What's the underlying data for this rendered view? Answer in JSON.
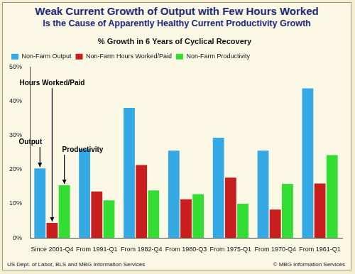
{
  "chart_data": {
    "type": "bar",
    "title": [
      "Weak Current Growth of Output with Few Hours Worked",
      "Is the Cause of Apparently Healthy Current Productivity Growth"
    ],
    "subtitle": "% Growth in 6 Years of Cyclical Recovery",
    "categories": [
      "Since 2001-Q4",
      "From 1991-Q1",
      "From 1982-Q4",
      "From 1980-Q3",
      "From 1975-Q1",
      "From 1970-Q4",
      "From 1961-Q1"
    ],
    "series": [
      {
        "name": "Non-Farm Output",
        "color": "#35a9e3",
        "values": [
          20.3,
          26,
          38,
          25.5,
          29.3,
          25.5,
          43.7
        ]
      },
      {
        "name": "Non-Farm Hours Worked/Paid",
        "color": "#c81e1e",
        "values": [
          4.4,
          13.6,
          21.3,
          11.3,
          17.6,
          8.3,
          15.9
        ]
      },
      {
        "name": "Non-Farm Productivity",
        "color": "#33dd33",
        "values": [
          15.4,
          11,
          13.9,
          12.8,
          10,
          15.8,
          24.2
        ]
      }
    ],
    "ylim": [
      0,
      50
    ],
    "yticks": [
      {
        "value": 0,
        "label": "0%"
      },
      {
        "value": 10,
        "label": "10%"
      },
      {
        "value": 20,
        "label": "20%"
      },
      {
        "value": 30,
        "label": "30%"
      },
      {
        "value": 40,
        "label": "40%"
      },
      {
        "value": 50,
        "label": "50%"
      }
    ],
    "grid": false,
    "legend": "upper left",
    "annotations": [
      "Output",
      "Hours Worked/Paid",
      "Productivity"
    ],
    "source": "US Dept. of Labor, BLS and MBG Information Services",
    "credit": "© MBG Information Services"
  }
}
